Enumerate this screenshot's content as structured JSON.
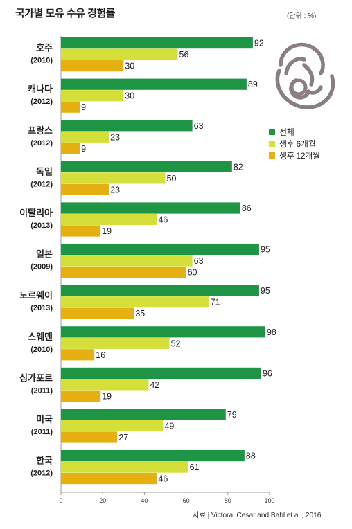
{
  "header": {
    "title": "국가별 모유 수유 경험률",
    "unit": "(단위 : %)"
  },
  "source": "자료 | Victora, Cesar and Bahl et al., 2016",
  "colors": {
    "total": "#1e9544",
    "six_months": "#d4e039",
    "twelve_months": "#e6b012",
    "axis": "#999999",
    "illustration": "#8b7e82"
  },
  "legend": [
    {
      "label": "전체",
      "color": "#1e9544"
    },
    {
      "label": "생후 6개월",
      "color": "#d4e039"
    },
    {
      "label": "생후 12개월",
      "color": "#e6b012"
    }
  ],
  "chart_data": {
    "type": "bar",
    "orientation": "horizontal",
    "title": "국가별 모유 수유 경험률",
    "unit": "(단위 : %)",
    "categories": [
      {
        "name": "호주",
        "year": "(2010)"
      },
      {
        "name": "캐나다",
        "year": "(2012)"
      },
      {
        "name": "프랑스",
        "year": "(2012)"
      },
      {
        "name": "독일",
        "year": "(2012)"
      },
      {
        "name": "이탈리아",
        "year": "(2013)"
      },
      {
        "name": "일본",
        "year": "(2009)"
      },
      {
        "name": "노르웨이",
        "year": "(2013)"
      },
      {
        "name": "스웨덴",
        "year": "(2010)"
      },
      {
        "name": "싱가포르",
        "year": "(2011)"
      },
      {
        "name": "미국",
        "year": "(2011)"
      },
      {
        "name": "한국",
        "year": "(2012)"
      }
    ],
    "series": [
      {
        "name": "전체",
        "values": [
          92,
          89,
          63,
          82,
          86,
          95,
          95,
          98,
          96,
          79,
          88
        ]
      },
      {
        "name": "생후 6개월",
        "values": [
          56,
          30,
          23,
          50,
          46,
          63,
          71,
          52,
          42,
          49,
          61
        ]
      },
      {
        "name": "생후 12개월",
        "values": [
          30,
          9,
          9,
          23,
          19,
          60,
          35,
          16,
          19,
          27,
          46
        ]
      }
    ],
    "xlim": [
      0,
      100
    ],
    "xticks": [
      0,
      20,
      40,
      60,
      80,
      100
    ],
    "grid": false,
    "legend_position": "right"
  }
}
